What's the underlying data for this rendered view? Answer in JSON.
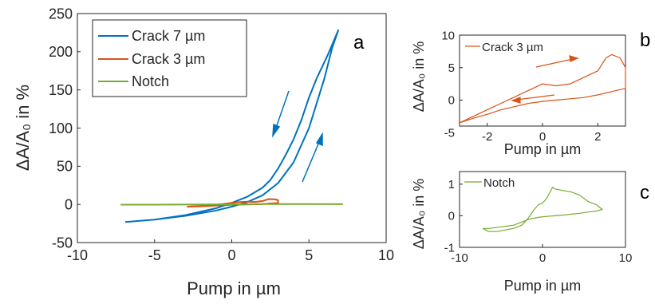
{
  "colors": {
    "crack7": "#0072BD",
    "crack3": "#D95319",
    "notch": "#77AC30",
    "axis": "#262626"
  },
  "chart_data": [
    {
      "type": "line",
      "panel_label": "a",
      "xlabel": "Pump in µm",
      "ylabel": "ΔA/A₀ in %",
      "xlim": [
        -10,
        10
      ],
      "ylim": [
        -50,
        250
      ],
      "xticks": [
        -10,
        -5,
        0,
        5,
        10
      ],
      "yticks": [
        -50,
        0,
        50,
        100,
        150,
        200,
        250
      ],
      "legend_position": "top-left",
      "series": [
        {
          "name": "Crack 7 µm",
          "color": "#0072BD",
          "x": [
            -6.9,
            -5,
            -3,
            -1,
            0,
            1,
            2,
            3,
            4,
            5,
            6,
            6.5,
            6.9,
            6.2,
            5.5,
            5,
            4.5,
            4,
            3.5,
            3,
            2.5,
            2,
            1,
            0,
            -1,
            -3,
            -5,
            -6.9
          ],
          "y": [
            -23,
            -20,
            -15,
            -8,
            -3,
            3,
            12,
            28,
            55,
            100,
            165,
            205,
            228,
            195,
            165,
            140,
            110,
            85,
            65,
            47,
            32,
            22,
            10,
            2,
            -5,
            -14,
            -20,
            -23
          ]
        },
        {
          "name": "Crack 3 µm",
          "color": "#D95319",
          "x": [
            -2.9,
            -2,
            -1,
            0,
            0.5,
            1,
            1.5,
            2,
            2.4,
            2.8,
            3,
            3,
            2.5,
            2,
            1,
            0,
            -1,
            -2,
            -2.9
          ],
          "y": [
            -3,
            -2,
            -0.5,
            2,
            3,
            3.5,
            3.2,
            4.5,
            7,
            6.5,
            5.5,
            1.8,
            1.2,
            0.5,
            0,
            -0.5,
            -1.5,
            -2.5,
            -3
          ]
        },
        {
          "name": "Notch",
          "color": "#77AC30",
          "x": [
            -7.2,
            -5,
            -2,
            0,
            2,
            5,
            7.2
          ],
          "y": [
            -0.4,
            -0.3,
            0,
            0.2,
            0.5,
            0.4,
            0.3
          ]
        }
      ]
    },
    {
      "type": "line",
      "panel_label": "b",
      "xlabel": "Pump in µm",
      "ylabel": "ΔA/A₀ in %",
      "xlim": [
        -3,
        3
      ],
      "ylim": [
        -4,
        10
      ],
      "xticks": [
        -2,
        0,
        2
      ],
      "yticks": [
        -5,
        0,
        5,
        10
      ],
      "series": [
        {
          "name": "Crack 3 µm",
          "color": "#D95319",
          "x": [
            -3,
            -2.5,
            -2,
            -1.5,
            -1,
            -0.5,
            0,
            0.5,
            1,
            1.5,
            2,
            2.3,
            2.5,
            2.8,
            3,
            3,
            2.7,
            2.4,
            2,
            1.5,
            1,
            0.5,
            0,
            -0.5,
            -1,
            -1.5,
            -2,
            -2.5,
            -3
          ],
          "y": [
            -3.5,
            -2.5,
            -1.5,
            -0.5,
            0.5,
            1.5,
            2.5,
            2.2,
            2.5,
            3.5,
            4.5,
            6.5,
            7,
            6.5,
            5,
            1.8,
            1.5,
            1.2,
            0.8,
            0.4,
            0.2,
            0,
            -0.2,
            -0.5,
            -1,
            -1.5,
            -2.2,
            -2.8,
            -3.5
          ]
        }
      ]
    },
    {
      "type": "line",
      "panel_label": "c",
      "xlabel": "Pump in µm",
      "ylabel": "ΔA/A₀ in %",
      "xlim": [
        -10,
        10
      ],
      "ylim": [
        -1,
        1.4
      ],
      "xticks": [
        -10,
        0,
        10
      ],
      "yticks": [
        -1,
        0,
        1
      ],
      "series": [
        {
          "name": "Notch",
          "color": "#77AC30",
          "x": [
            -7.2,
            -6.5,
            -5.5,
            -4.5,
            -3.5,
            -2.5,
            -1.8,
            -1,
            -0.5,
            0,
            0.5,
            1,
            1.2,
            1.5,
            2.5,
            3.5,
            4.5,
            5.5,
            6.5,
            7.2,
            6.5,
            5.5,
            4.5,
            3.5,
            2.5,
            1.5,
            0.5,
            -0.5,
            -1.5,
            -2.5,
            -3.5,
            -5,
            -6.5,
            -7.2
          ],
          "y": [
            -0.4,
            -0.5,
            -0.5,
            -0.45,
            -0.4,
            -0.3,
            -0.1,
            0.2,
            0.35,
            0.4,
            0.55,
            0.8,
            0.9,
            0.85,
            0.8,
            0.75,
            0.65,
            0.45,
            0.35,
            0.2,
            0.15,
            0.12,
            0.08,
            0.05,
            0.02,
            0,
            -0.02,
            -0.05,
            -0.1,
            -0.2,
            -0.3,
            -0.35,
            -0.4,
            -0.4
          ]
        }
      ]
    }
  ]
}
